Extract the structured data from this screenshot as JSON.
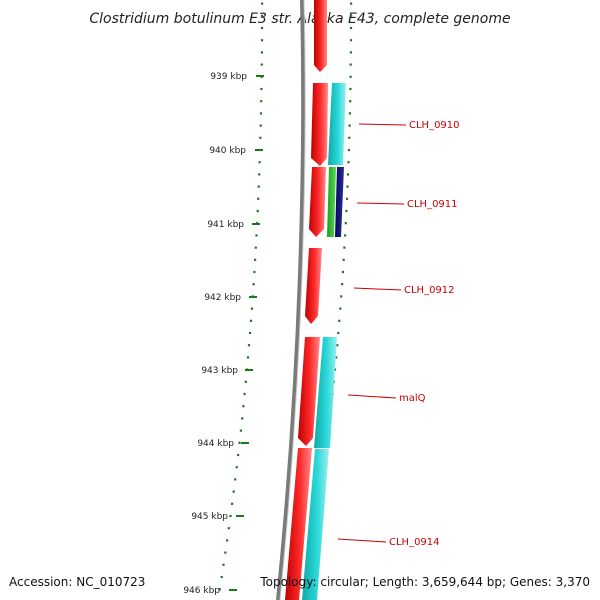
{
  "title": "Clostridium botulinum E3 str. Alaska E43, complete genome",
  "accession": "Accession: NC_010723",
  "summary": "Topology: circular; Length: 3,659,644 bp; Genes: 3,370",
  "colors": {
    "backbone": "#7a7a7a",
    "tick": "#1a7a1a",
    "cds": "#ee0000",
    "gene_a": "#22cccc",
    "gene_b": "#33bb33",
    "gene_c": "#101080",
    "label": "#cc0000"
  },
  "ticks": [
    "939 kbp",
    "940 kbp",
    "941 kbp",
    "942 kbp",
    "943 kbp",
    "944 kbp",
    "945 kbp",
    "946 kbp"
  ],
  "genes": [
    {
      "label": "CLH_0910"
    },
    {
      "label": "CLH_0911"
    },
    {
      "label": "CLH_0912"
    },
    {
      "label": "malQ"
    },
    {
      "label": "CLH_0914"
    }
  ]
}
